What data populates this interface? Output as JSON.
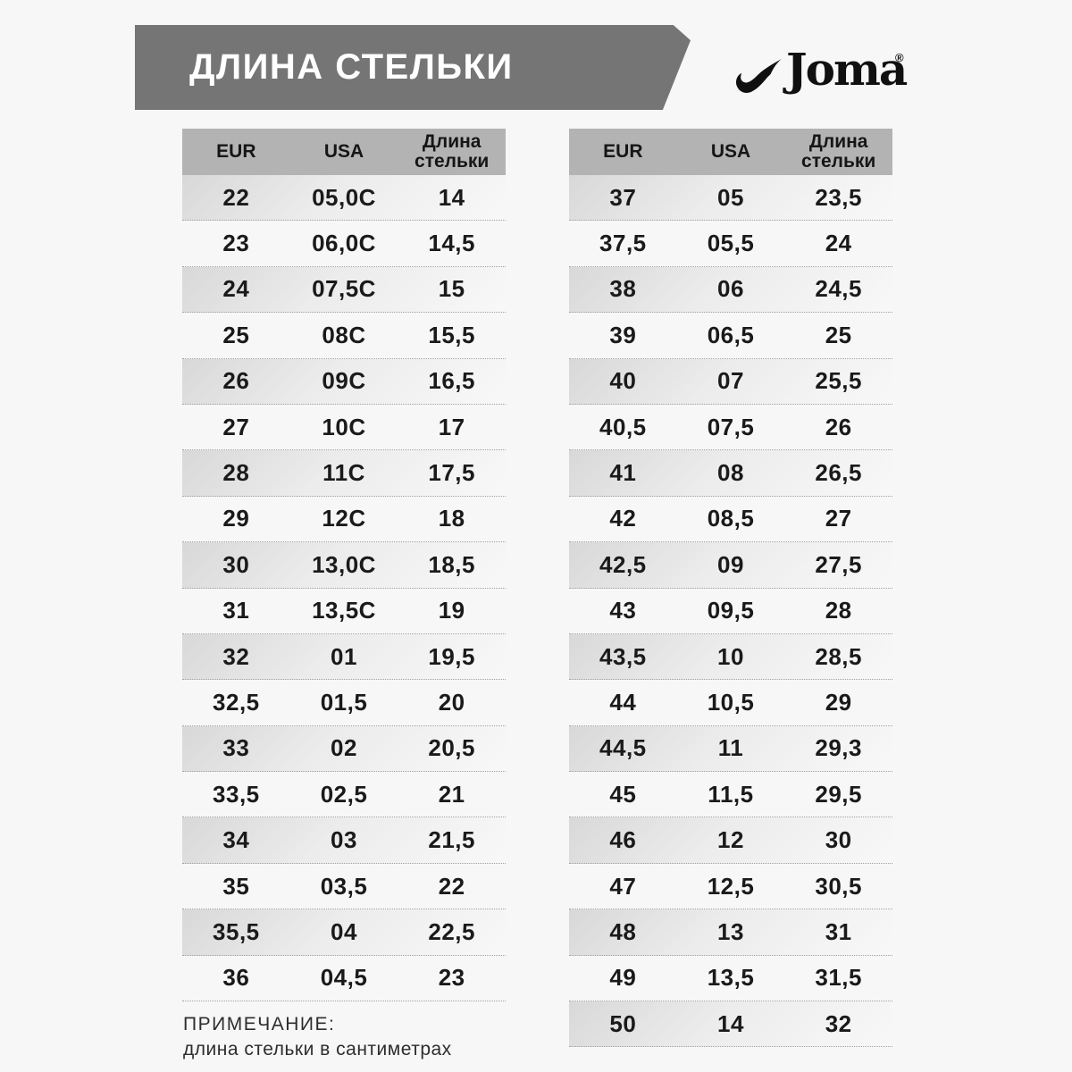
{
  "banner": {
    "title": "ДЛИНА СТЕЛЬКИ"
  },
  "logo": {
    "brand": "Joma",
    "registered": "®"
  },
  "tables": [
    {
      "id": "children-sizes",
      "headers": [
        "EUR",
        "USA",
        "Длина стельки"
      ],
      "rows": [
        [
          "22",
          "05,0C",
          "14"
        ],
        [
          "23",
          "06,0C",
          "14,5"
        ],
        [
          "24",
          "07,5C",
          "15"
        ],
        [
          "25",
          "08C",
          "15,5"
        ],
        [
          "26",
          "09C",
          "16,5"
        ],
        [
          "27",
          "10C",
          "17"
        ],
        [
          "28",
          "11C",
          "17,5"
        ],
        [
          "29",
          "12C",
          "18"
        ],
        [
          "30",
          "13,0C",
          "18,5"
        ],
        [
          "31",
          "13,5C",
          "19"
        ],
        [
          "32",
          "01",
          "19,5"
        ],
        [
          "32,5",
          "01,5",
          "20"
        ],
        [
          "33",
          "02",
          "20,5"
        ],
        [
          "33,5",
          "02,5",
          "21"
        ],
        [
          "34",
          "03",
          "21,5"
        ],
        [
          "35",
          "03,5",
          "22"
        ],
        [
          "35,5",
          "04",
          "22,5"
        ],
        [
          "36",
          "04,5",
          "23"
        ]
      ]
    },
    {
      "id": "adult-sizes",
      "headers": [
        "EUR",
        "USA",
        "Длина стельки"
      ],
      "rows": [
        [
          "37",
          "05",
          "23,5"
        ],
        [
          "37,5",
          "05,5",
          "24"
        ],
        [
          "38",
          "06",
          "24,5"
        ],
        [
          "39",
          "06,5",
          "25"
        ],
        [
          "40",
          "07",
          "25,5"
        ],
        [
          "40,5",
          "07,5",
          "26"
        ],
        [
          "41",
          "08",
          "26,5"
        ],
        [
          "42",
          "08,5",
          "27"
        ],
        [
          "42,5",
          "09",
          "27,5"
        ],
        [
          "43",
          "09,5",
          "28"
        ],
        [
          "43,5",
          "10",
          "28,5"
        ],
        [
          "44",
          "10,5",
          "29"
        ],
        [
          "44,5",
          "11",
          "29,3"
        ],
        [
          "45",
          "11,5",
          "29,5"
        ],
        [
          "46",
          "12",
          "30"
        ],
        [
          "47",
          "12,5",
          "30,5"
        ],
        [
          "48",
          "13",
          "31"
        ],
        [
          "49",
          "13,5",
          "31,5"
        ],
        [
          "50",
          "14",
          "32"
        ]
      ]
    }
  ],
  "note": {
    "title": "ПРИМЕЧАНИЕ:",
    "text": "длина стельки в сантиметрах"
  },
  "colors": {
    "page_background": "#f7f7f8",
    "banner_background": "#757575",
    "banner_text": "#ffffff",
    "table_header_background": "#b3b3b3",
    "stripe_gradient_start": "#d8d8d8",
    "stripe_gradient_end": "#f8f8f8",
    "cell_text": "#1a1a1a",
    "dotted_separator": "#a3a3a3",
    "logo_color": "#101010"
  }
}
